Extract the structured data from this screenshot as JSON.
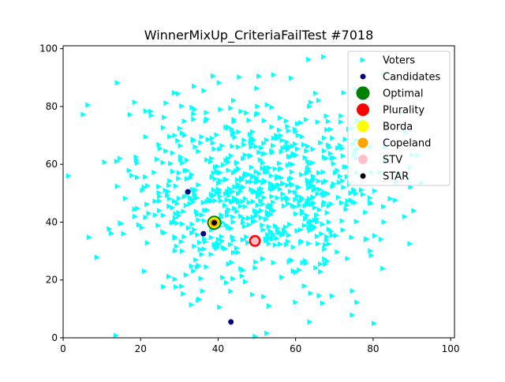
{
  "chart_data": {
    "type": "scatter",
    "title": "WinnerMixUp_CriteriaFailTest #7018",
    "xlabel": "",
    "ylabel": "",
    "xlim": [
      0,
      101
    ],
    "ylim": [
      0,
      101
    ],
    "xticks": [
      "0",
      "20",
      "40",
      "60",
      "80",
      "100"
    ],
    "yticks": [
      "0",
      "20",
      "40",
      "60",
      "80",
      "100"
    ],
    "grid": false,
    "legend_position": "top-right",
    "legend": [
      {
        "label": "Voters",
        "marker": "triangle-right",
        "color": "#00ffff"
      },
      {
        "label": "Candidates",
        "marker": "dot",
        "color": "#000080"
      },
      {
        "label": "Optimal",
        "marker": "circle",
        "color": "#008000"
      },
      {
        "label": "Plurality",
        "marker": "circle",
        "color": "#ff0000"
      },
      {
        "label": "Borda",
        "marker": "circle",
        "color": "#ffff00"
      },
      {
        "label": "Copeland",
        "marker": "circle",
        "color": "#ffa500"
      },
      {
        "label": "STV",
        "marker": "circle",
        "color": "#ffc0cb"
      },
      {
        "label": "STAR",
        "marker": "dot",
        "color": "#000000"
      }
    ],
    "voters": {
      "color": "#00ffff",
      "distribution": {
        "center": [
          50,
          50
        ],
        "spread": 17,
        "count": 800
      }
    },
    "candidates": [
      {
        "x": 32.2,
        "y": 50.5
      },
      {
        "x": 36.2,
        "y": 36.0
      },
      {
        "x": 39.0,
        "y": 39.8
      },
      {
        "x": 43.3,
        "y": 5.5
      },
      {
        "x": 49.5,
        "y": 33.5
      }
    ],
    "winners": {
      "optimal": {
        "x": 39.0,
        "y": 39.8,
        "color": "#008000"
      },
      "borda": {
        "x": 39.0,
        "y": 39.8,
        "color": "#ffff00"
      },
      "copeland": {
        "x": 39.0,
        "y": 39.8,
        "color": "#ffa500"
      },
      "star": {
        "x": 39.0,
        "y": 39.8,
        "color": "#000000"
      },
      "plurality": {
        "x": 49.5,
        "y": 33.5,
        "color": "#ff0000"
      },
      "stv": {
        "x": 49.5,
        "y": 33.5,
        "color": "#ffc0cb"
      }
    }
  }
}
